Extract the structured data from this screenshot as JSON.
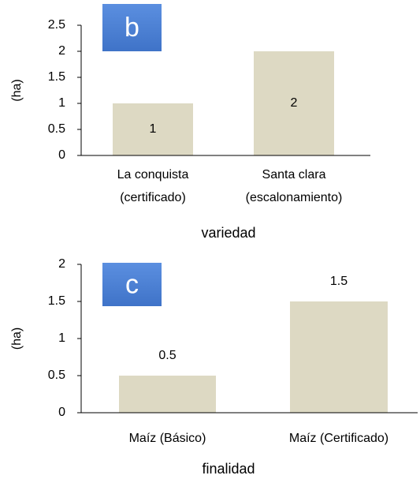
{
  "chart_data": [
    {
      "type": "bar",
      "panel_label": "b",
      "y_label": "(ha)",
      "x_label": "variedad",
      "categories": [
        [
          "La conquista",
          "(certificado)"
        ],
        [
          "Santa clara",
          "(escalonamiento)"
        ]
      ],
      "values": [
        1,
        2
      ],
      "color": "#ddd9c3",
      "label_position": "inside",
      "ylim": [
        0,
        2.5
      ],
      "yticks": [
        0,
        0.5,
        1,
        1.5,
        2,
        2.5
      ]
    },
    {
      "type": "bar",
      "panel_label": "c",
      "y_label": "(ha)",
      "x_label": "finalidad",
      "categories": [
        [
          "Maíz (Básico)"
        ],
        [
          "Maíz (Certificado)"
        ]
      ],
      "values": [
        0.5,
        1.5
      ],
      "color": "#ddd9c3",
      "label_position": "above",
      "ylim": [
        0,
        2
      ],
      "yticks": [
        0,
        0.5,
        1,
        1.5,
        2
      ]
    }
  ]
}
